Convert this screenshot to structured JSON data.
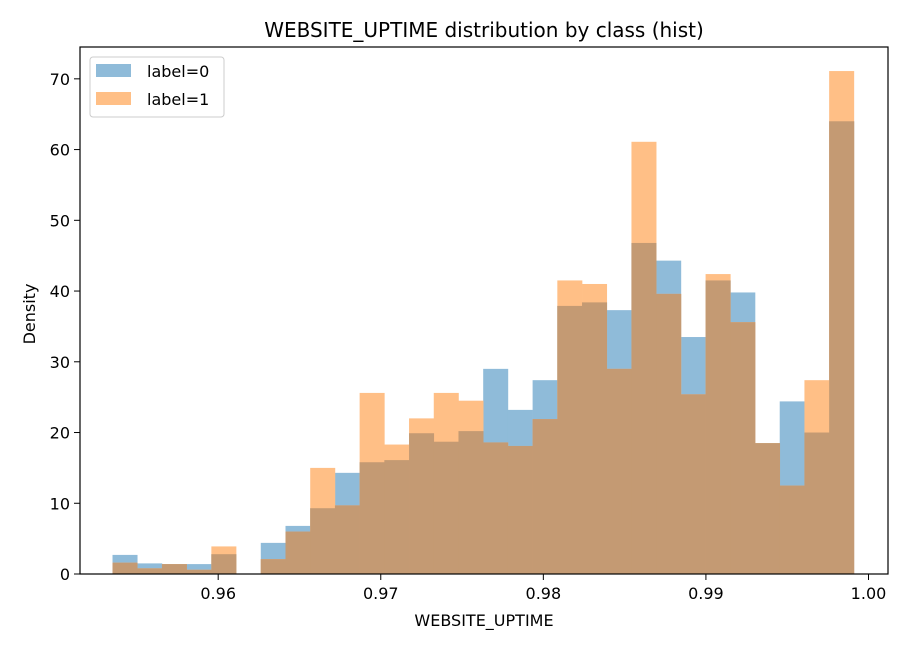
{
  "chart_data": {
    "type": "bar",
    "title": "WEBSITE_UPTIME distribution by class (hist)",
    "xlabel": "WEBSITE_UPTIME",
    "ylabel": "Density",
    "xlim": [
      0.9515,
      1.0012
    ],
    "ylim": [
      0,
      74.5
    ],
    "xticks": [
      0.96,
      0.97,
      0.98,
      0.99,
      1.0
    ],
    "xtick_labels": [
      "0.96",
      "0.97",
      "0.98",
      "0.99",
      "1.00"
    ],
    "yticks": [
      0,
      10,
      20,
      30,
      40,
      50,
      60,
      70
    ],
    "ytick_labels": [
      "0",
      "10",
      "20",
      "30",
      "40",
      "50",
      "60",
      "70"
    ],
    "bin_edges": [
      0.9535,
      0.95502,
      0.95654,
      0.95806,
      0.95958,
      0.9611,
      0.96262,
      0.96414,
      0.96566,
      0.96718,
      0.9687,
      0.97022,
      0.97174,
      0.97326,
      0.97478,
      0.9763,
      0.97782,
      0.97934,
      0.98086,
      0.98238,
      0.9839,
      0.98542,
      0.98694,
      0.98846,
      0.98998,
      0.9915,
      0.99302,
      0.99454,
      0.99606,
      0.99758,
      0.9991
    ],
    "legend_position": "upper left",
    "series": [
      {
        "name": "label=0",
        "color": "#1f77b4",
        "values": [
          2.7,
          1.5,
          1.4,
          1.4,
          2.8,
          0,
          4.4,
          6.8,
          9.3,
          14.3,
          15.8,
          16.1,
          19.9,
          18.7,
          20.2,
          29.0,
          23.2,
          27.4,
          37.9,
          38.4,
          37.3,
          46.8,
          44.3,
          33.5,
          41.5,
          39.8,
          18.5,
          24.4,
          20.0,
          64.0
        ]
      },
      {
        "name": "label=1",
        "color": "#ff7f0e",
        "values": [
          1.6,
          0.8,
          1.4,
          0.6,
          3.9,
          0,
          2.1,
          6.0,
          15.0,
          9.7,
          25.6,
          18.3,
          22.0,
          25.6,
          24.5,
          18.6,
          18.1,
          21.9,
          41.5,
          41.0,
          29.0,
          61.1,
          39.6,
          25.4,
          42.4,
          35.6,
          18.5,
          12.5,
          27.4,
          71.1
        ]
      }
    ]
  }
}
